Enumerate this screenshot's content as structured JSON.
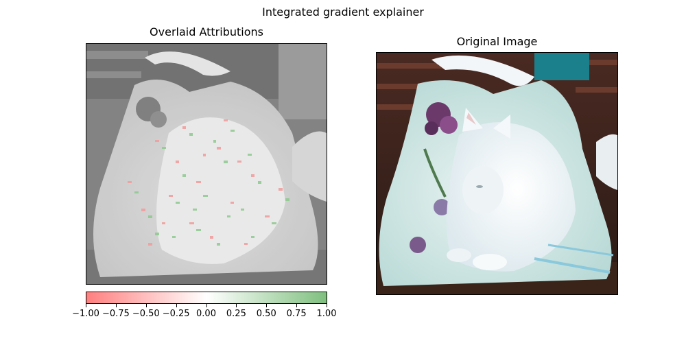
{
  "figure": {
    "title": "Integrated gradient explainer"
  },
  "panels": {
    "left": {
      "title": "Overlaid Attributions",
      "image_subject": "grayscale photo of a white cat lying on a blanket overlaid with red and green attribution speckles"
    },
    "right": {
      "title": "Original Image",
      "image_subject": "white cat lying on a floral light-blue blanket with a dark bookshelf background"
    }
  },
  "colorbar": {
    "min_color": "#ff7f7f",
    "mid_color": "#ffffff",
    "max_color": "#7fbf7f",
    "range": [
      -1.0,
      1.0
    ],
    "tick_labels": [
      "−1.00",
      "−0.75",
      "−0.50",
      "−0.25",
      "0.00",
      "0.25",
      "0.50",
      "0.75",
      "1.00"
    ],
    "tick_values": [
      -1.0,
      -0.75,
      -0.5,
      -0.25,
      0.0,
      0.25,
      0.5,
      0.75,
      1.0
    ]
  }
}
